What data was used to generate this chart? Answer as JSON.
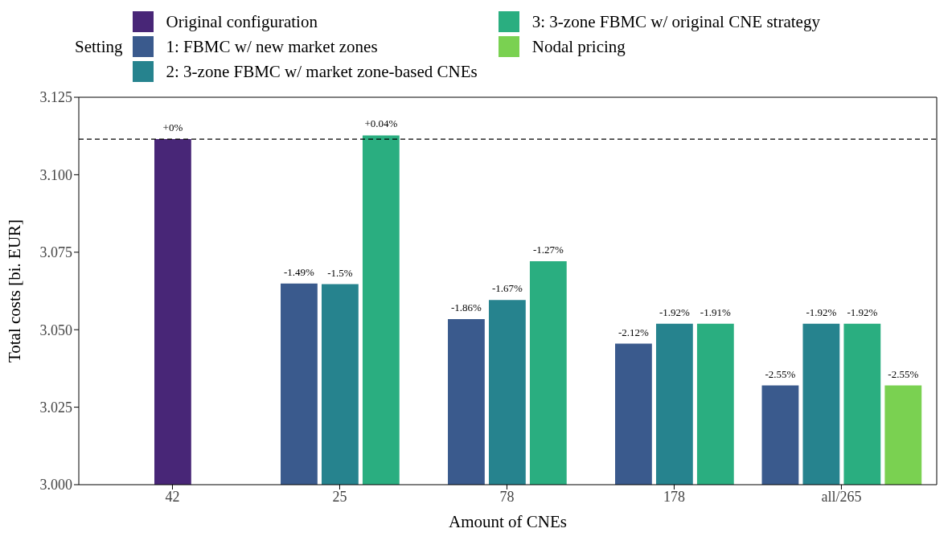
{
  "chart_data": {
    "type": "bar",
    "xlabel": "Amount of CNEs",
    "ylabel": "Total costs [bi. EUR]",
    "legend_title": "Setting",
    "legend": "top",
    "grid": false,
    "categories": [
      "42",
      "25",
      "78",
      "178",
      "all/265"
    ],
    "ylim": [
      3.0,
      3.125
    ],
    "yticks": [
      {
        "value": 3.0,
        "label": "3.000"
      },
      {
        "value": 3.025,
        "label": "3.025"
      },
      {
        "value": 3.05,
        "label": "3.050"
      },
      {
        "value": 3.075,
        "label": "3.075"
      },
      {
        "value": 3.1,
        "label": "3.100"
      },
      {
        "value": 3.125,
        "label": "3.125"
      }
    ],
    "ref_lines": [
      {
        "axis": "y",
        "value": 3.1115,
        "line_style": "dashed",
        "color": "#000000"
      }
    ],
    "series": [
      {
        "name": "Original configuration",
        "color": "#482677",
        "values": [
          3.1115,
          null,
          null,
          null,
          null
        ]
      },
      {
        "name": "1: FBMC w/ new market zones",
        "color": "#3a5a8d",
        "values": [
          null,
          3.0649,
          3.0534,
          3.0455,
          3.032
        ]
      },
      {
        "name": "2: 3-zone FBMC w/ market zone-based CNEs",
        "color": "#26838e",
        "values": [
          null,
          3.0647,
          3.0596,
          3.0519,
          3.0519
        ]
      },
      {
        "name": "3: 3-zone FBMC w/ original CNE strategy",
        "color": "#2aae80",
        "values": [
          null,
          3.1127,
          3.0721,
          3.0519,
          3.0519
        ]
      },
      {
        "name": "Nodal pricing",
        "color": "#7ad151",
        "values": [
          null,
          null,
          null,
          null,
          3.032
        ]
      }
    ],
    "annotations": [
      "+0%",
      "-1.49%",
      "-1.5%",
      "+0.04%",
      "-1.86%",
      "-1.67%",
      "-1.27%",
      "-2.12%",
      "-1.92%",
      "-1.91%",
      "-2.55%",
      "-1.92%",
      "-1.92%",
      "-2.55%"
    ]
  }
}
